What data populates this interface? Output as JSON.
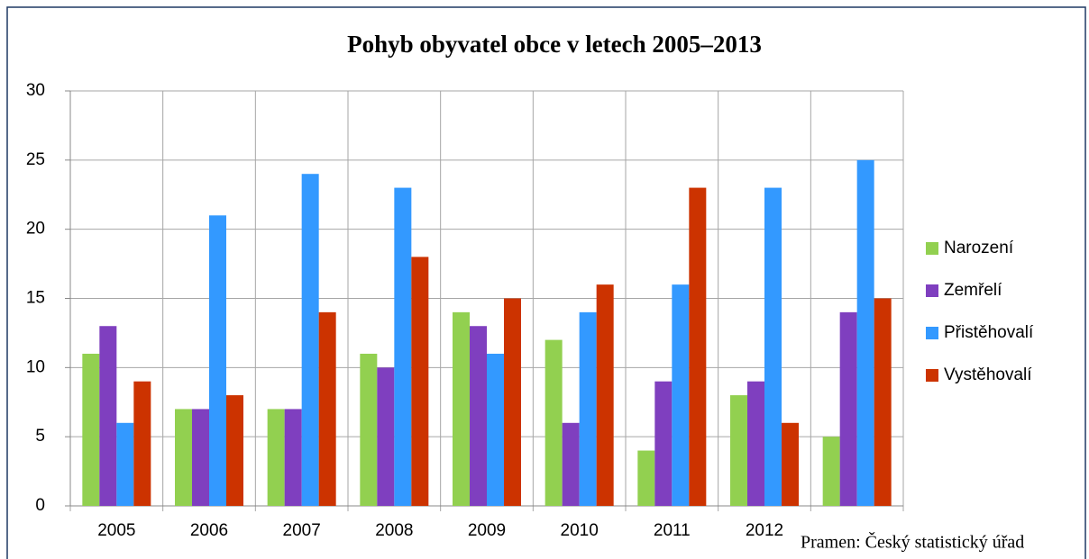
{
  "chart_data": {
    "type": "bar",
    "title": "Pohyb obyvatel obce v letech 2005–2013",
    "source": "Pramen: Český statistický úřad",
    "categories": [
      "2005",
      "2006",
      "2007",
      "2008",
      "2009",
      "2010",
      "2011",
      "2012",
      null
    ],
    "series": [
      {
        "name": "Narození",
        "color": "#92d050",
        "values": [
          11,
          7,
          7,
          11,
          14,
          12,
          4,
          8,
          5
        ]
      },
      {
        "name": "Zemřelí",
        "color": "#7f3fbf",
        "values": [
          13,
          7,
          7,
          10,
          13,
          6,
          9,
          9,
          14
        ]
      },
      {
        "name": "Přistěhovalí",
        "color": "#3399ff",
        "values": [
          6,
          21,
          24,
          23,
          11,
          14,
          16,
          23,
          25
        ]
      },
      {
        "name": "Vystěhovalí",
        "color": "#cc3300",
        "values": [
          9,
          8,
          14,
          18,
          15,
          16,
          23,
          6,
          15
        ]
      }
    ],
    "ylim": [
      0,
      30
    ],
    "yticks": [
      0,
      5,
      10,
      15,
      20,
      25,
      30
    ],
    "grid": true,
    "legend": "right"
  }
}
